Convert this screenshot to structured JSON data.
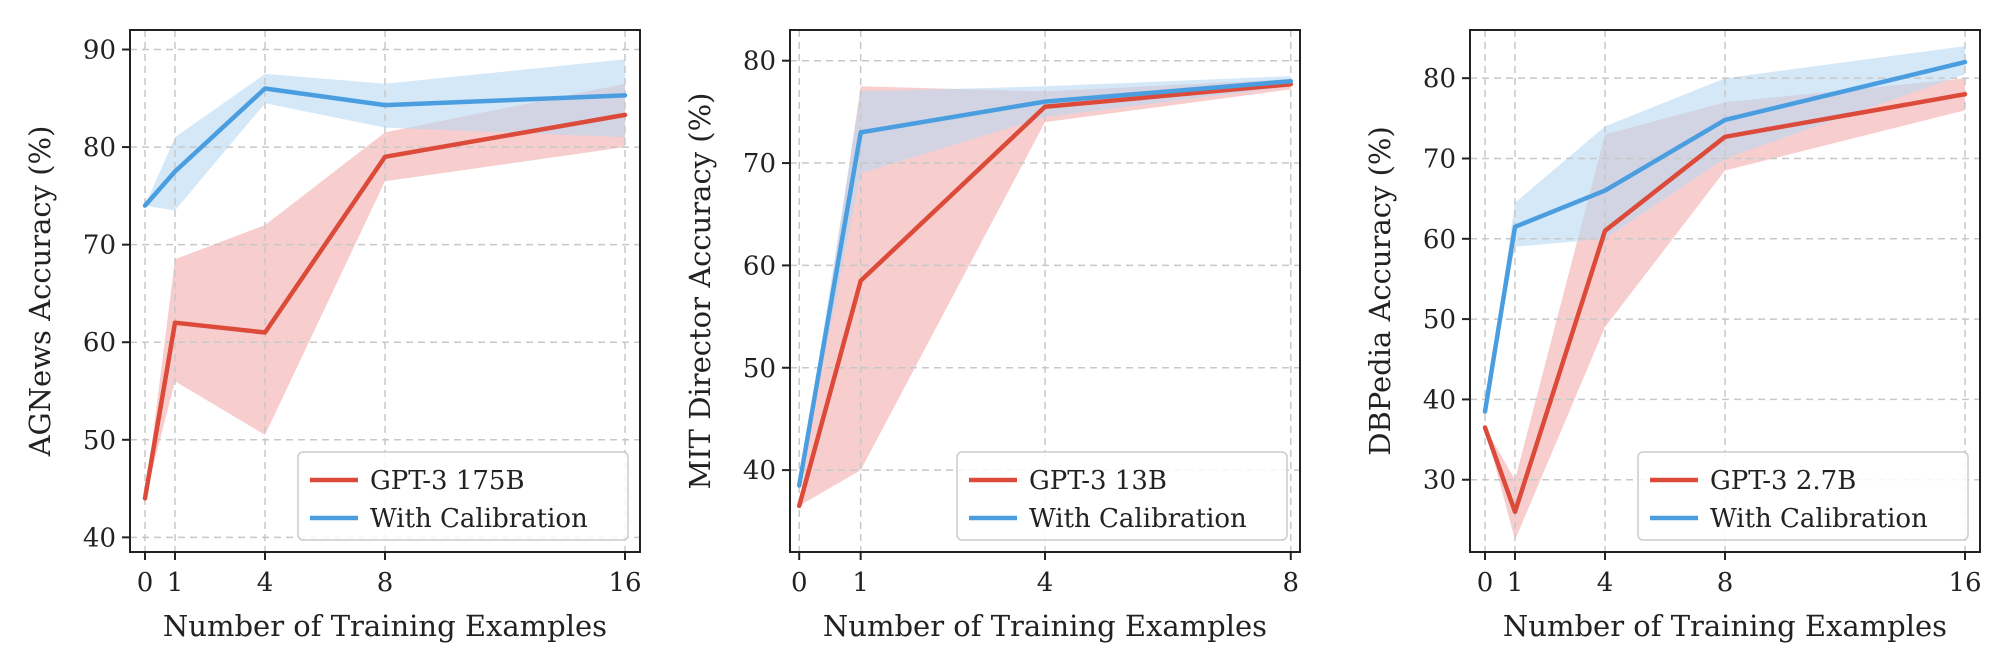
{
  "colors": {
    "calibrated": "#4a9ee0",
    "calibrated_band": "#b9d9f3",
    "baseline": "#dc4a3a",
    "baseline_band": "#f5bcbc",
    "grid": "#c8c8c8",
    "axes": "#222222"
  },
  "chart_data": [
    {
      "type": "line",
      "xlabel": "Number of Training Examples",
      "ylabel": "AGNews Accuracy (%)",
      "xlim": [
        -0.5,
        16.5
      ],
      "ylim": [
        38.5,
        92
      ],
      "xticks": [
        0,
        1,
        4,
        8,
        16
      ],
      "yticks": [
        40,
        50,
        60,
        70,
        80,
        90
      ],
      "grid": true,
      "legend_position": "lower-right",
      "series": [
        {
          "name": "GPT-3 175B",
          "role": "baseline",
          "x": [
            0,
            1,
            4,
            8,
            16
          ],
          "y": [
            44,
            62,
            61,
            79,
            83.3
          ],
          "lower": [
            44,
            56,
            50.5,
            76.5,
            80
          ],
          "upper": [
            44,
            68.5,
            72,
            81.5,
            86.5
          ]
        },
        {
          "name": "With Calibration",
          "role": "calibrated",
          "x": [
            0,
            1,
            4,
            8,
            16
          ],
          "y": [
            74,
            77.5,
            86,
            84.3,
            85.3
          ],
          "lower": [
            74,
            73.5,
            84.5,
            82,
            81
          ],
          "upper": [
            74,
            81,
            87.5,
            86.5,
            89
          ]
        }
      ]
    },
    {
      "type": "line",
      "xlabel": "Number of Training Examples",
      "ylabel": "MIT Director Accuracy (%)",
      "xlim": [
        -0.15,
        8.15
      ],
      "ylim": [
        32,
        83
      ],
      "xticks": [
        0,
        1,
        4,
        8
      ],
      "yticks": [
        40,
        50,
        60,
        70,
        80
      ],
      "grid": true,
      "legend_position": "lower-right",
      "series": [
        {
          "name": "GPT-3 13B",
          "role": "baseline",
          "x": [
            0,
            1,
            4,
            8
          ],
          "y": [
            36.5,
            58.5,
            75.5,
            77.7
          ],
          "lower": [
            36.5,
            40,
            74,
            77.2
          ],
          "upper": [
            36.5,
            77.5,
            77,
            78.2
          ]
        },
        {
          "name": "With Calibration",
          "role": "calibrated",
          "x": [
            0,
            1,
            4,
            8
          ],
          "y": [
            38.5,
            73,
            76,
            78
          ],
          "lower": [
            38.5,
            69,
            74.5,
            77.5
          ],
          "upper": [
            38.5,
            77,
            77.5,
            78.5
          ]
        }
      ]
    },
    {
      "type": "line",
      "xlabel": "Number of Training Examples",
      "ylabel": "DBPedia Accuracy (%)",
      "xlim": [
        -0.5,
        16.5
      ],
      "ylim": [
        21,
        86
      ],
      "xticks": [
        0,
        1,
        4,
        8,
        16
      ],
      "yticks": [
        30,
        40,
        50,
        60,
        70,
        80
      ],
      "grid": true,
      "legend_position": "lower-right",
      "series": [
        {
          "name": "GPT-3 2.7B",
          "role": "baseline",
          "x": [
            0,
            1,
            4,
            8,
            16
          ],
          "y": [
            36.5,
            26,
            61,
            72.7,
            78
          ],
          "lower": [
            36.5,
            22.5,
            49,
            68.5,
            76
          ],
          "upper": [
            36.5,
            30,
            73,
            77,
            80
          ]
        },
        {
          "name": "With Calibration",
          "role": "calibrated",
          "x": [
            0,
            1,
            4,
            8,
            16
          ],
          "y": [
            38.5,
            61.5,
            66,
            74.8,
            82
          ],
          "lower": [
            38.5,
            59,
            60,
            70,
            80.5
          ],
          "upper": [
            38.5,
            64.5,
            74,
            80,
            84
          ]
        }
      ]
    }
  ]
}
